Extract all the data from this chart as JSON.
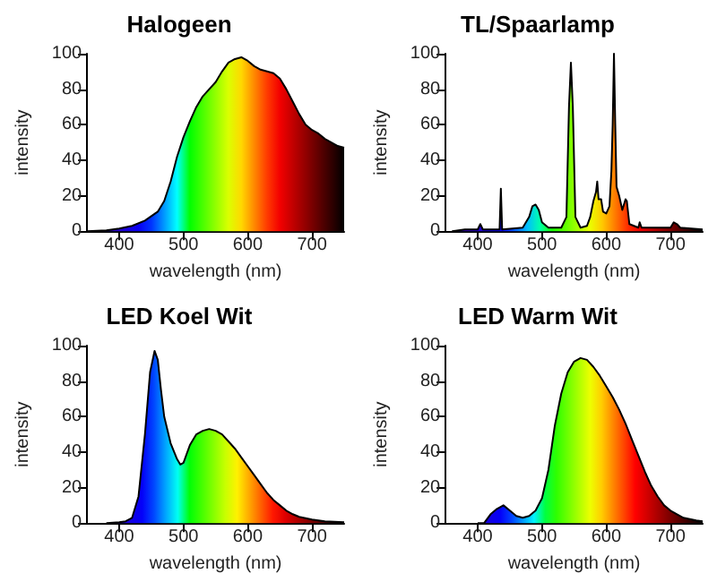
{
  "chart_data": [
    {
      "type": "area",
      "title": "Halogeen",
      "xlabel": "wavelength (nm)",
      "ylabel": "intensity",
      "xlim": [
        350,
        750
      ],
      "xticks": [
        400,
        500,
        600,
        700
      ],
      "ylim": [
        0,
        100
      ],
      "yticks": [
        0,
        20,
        40,
        60,
        80,
        100
      ],
      "marker": "none",
      "x": [
        350,
        380,
        400,
        420,
        440,
        460,
        470,
        480,
        490,
        500,
        510,
        520,
        530,
        540,
        550,
        560,
        570,
        580,
        590,
        600,
        610,
        620,
        630,
        640,
        650,
        660,
        670,
        680,
        690,
        700,
        710,
        720,
        730,
        740,
        750
      ],
      "series": [
        {
          "color": "#000000",
          "values": [
            0,
            0.5,
            1.5,
            3,
            6,
            11,
            17,
            28,
            42,
            53,
            62,
            70,
            76,
            80,
            84,
            90,
            95,
            97,
            98,
            96,
            93,
            91,
            90,
            89,
            86,
            80,
            73,
            66,
            60,
            57,
            55,
            52,
            50,
            48,
            47
          ]
        }
      ]
    },
    {
      "type": "area",
      "title": "TL/Spaarlamp",
      "xlabel": "wavelength (nm)",
      "ylabel": "intensity",
      "xlim": [
        350,
        750
      ],
      "xticks": [
        400,
        500,
        600,
        700
      ],
      "ylim": [
        0,
        100
      ],
      "yticks": [
        0,
        20,
        40,
        60,
        80,
        100
      ],
      "marker": "none",
      "x": [
        360,
        380,
        400,
        404,
        408,
        430,
        434,
        436,
        438,
        470,
        480,
        485,
        490,
        495,
        500,
        510,
        530,
        538,
        542,
        545,
        548,
        552,
        560,
        570,
        575,
        580,
        584,
        586,
        588,
        592,
        595,
        600,
        605,
        608,
        610,
        612,
        614,
        616,
        620,
        625,
        630,
        632,
        636,
        650,
        652,
        655,
        670,
        700,
        705,
        710,
        715,
        750
      ],
      "series": [
        {
          "color": "#000000",
          "values": [
            0,
            1,
            1,
            4,
            1,
            1,
            1,
            24,
            1,
            2,
            8,
            14,
            15,
            12,
            5,
            2,
            2,
            8,
            70,
            95,
            70,
            8,
            2,
            3,
            8,
            17,
            22,
            28,
            18,
            18,
            11,
            10,
            14,
            34,
            60,
            100,
            60,
            25,
            20,
            12,
            18,
            17,
            4,
            2,
            5,
            2,
            2,
            2,
            5,
            4,
            2,
            1
          ]
        }
      ]
    },
    {
      "type": "area",
      "title": "LED Koel Wit",
      "xlabel": "wavelength (nm)",
      "ylabel": "intensity",
      "xlim": [
        350,
        750
      ],
      "xticks": [
        400,
        500,
        600,
        700
      ],
      "ylim": [
        0,
        100
      ],
      "yticks": [
        0,
        20,
        40,
        60,
        80,
        100
      ],
      "marker": "none",
      "x": [
        380,
        400,
        410,
        420,
        430,
        440,
        448,
        455,
        460,
        465,
        470,
        480,
        490,
        495,
        500,
        510,
        520,
        530,
        540,
        550,
        560,
        570,
        580,
        590,
        600,
        610,
        620,
        630,
        640,
        650,
        660,
        670,
        680,
        700,
        720,
        750
      ],
      "series": [
        {
          "color": "#000000",
          "values": [
            0,
            0.5,
            1,
            3,
            15,
            50,
            85,
            97,
            92,
            75,
            60,
            45,
            36,
            33,
            34,
            44,
            50,
            52,
            53,
            52,
            50,
            46,
            42,
            37,
            32,
            27,
            22,
            17,
            13,
            10,
            7,
            5,
            3.5,
            2,
            1,
            0.5
          ]
        }
      ]
    },
    {
      "type": "area",
      "title": "LED Warm Wit",
      "xlabel": "wavelength (nm)",
      "ylabel": "intensity",
      "xlim": [
        350,
        750
      ],
      "xticks": [
        400,
        500,
        600,
        700
      ],
      "ylim": [
        0,
        100
      ],
      "yticks": [
        0,
        20,
        40,
        60,
        80,
        100
      ],
      "marker": "none",
      "x": [
        400,
        410,
        420,
        430,
        440,
        450,
        460,
        470,
        480,
        490,
        500,
        510,
        520,
        530,
        540,
        550,
        560,
        570,
        580,
        590,
        600,
        610,
        620,
        630,
        640,
        650,
        660,
        670,
        680,
        690,
        700,
        720,
        740,
        750
      ],
      "series": [
        {
          "color": "#000000",
          "values": [
            0,
            0,
            5,
            8,
            10,
            7,
            4,
            3,
            4,
            7,
            14,
            30,
            55,
            73,
            85,
            91,
            93,
            92,
            88,
            83,
            77,
            71,
            64,
            56,
            47,
            38,
            29,
            21,
            15,
            10,
            7,
            3,
            1.5,
            1
          ]
        }
      ]
    }
  ]
}
